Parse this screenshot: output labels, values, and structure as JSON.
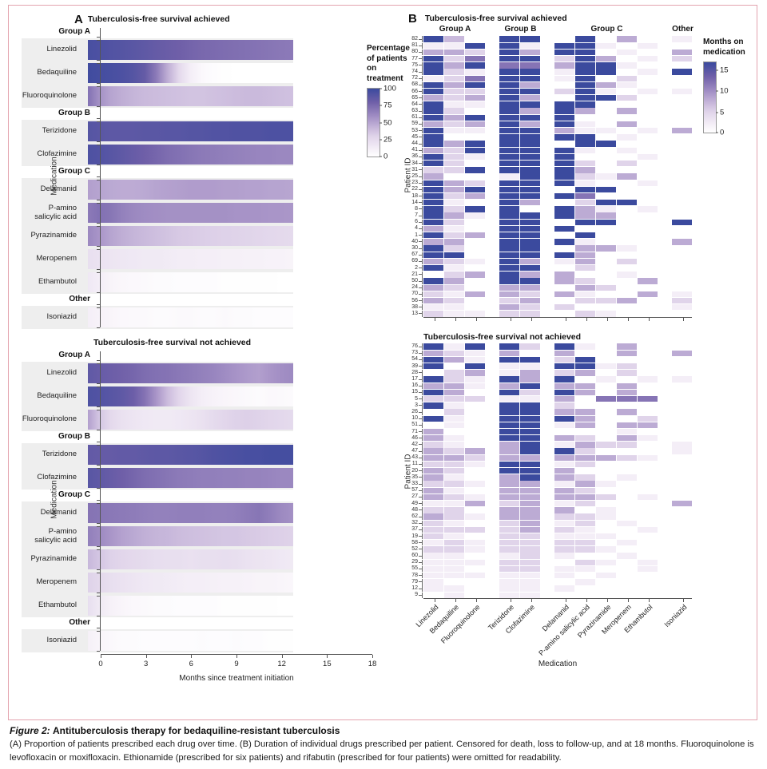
{
  "figure": {
    "caption_label": "Figure 2:",
    "caption_title": "Antituberculosis therapy for bedaquiline-resistant tuberculosis",
    "caption_body": "(A) Proportion of patients prescribed each drug over time. (B) Duration of individual drugs prescribed per patient. Censored for death, loss to follow-up, and at 18 months. Fluoroquinolone is levofloxacin or moxifloxacin. Ethionamide (prescribed for six patients) and rifabutin (prescribed for four patients) were omitted for readability."
  },
  "colors": {
    "frame_border": "#e4a4af",
    "scale_dark": "#3b4a9e",
    "scale_mid": "#a995c8",
    "scale_light": "#f6f1f8",
    "axis": "#555555"
  },
  "panel_a": {
    "panel_label": "A",
    "title_achieved": "Tuberculosis-free survival achieved",
    "title_not_achieved": "Tuberculosis-free survival not achieved",
    "ylabel": "Medication",
    "xlabel": "Months since treatment initiation",
    "x_ticks": [
      "0",
      "3",
      "6",
      "9",
      "12",
      "15",
      "18"
    ],
    "legend_title_lines": [
      "Percentage",
      "of patients",
      "on",
      "treatment"
    ],
    "legend_ticks": [
      "100",
      "75",
      "50",
      "25",
      "0"
    ]
  },
  "panel_b": {
    "panel_label": "B",
    "title_achieved": "Tuberculosis-free survival achieved",
    "title_not_achieved": "Tuberculosis-free survival not achieved",
    "ylabel": "Patient ID",
    "xlabel": "Medication",
    "group_labels": [
      "Group A",
      "Group B",
      "Group C",
      "Other"
    ],
    "legend_title_lines": [
      "Months on",
      "medication"
    ],
    "legend_ticks": [
      "15",
      "10",
      "5",
      "0"
    ]
  },
  "chart_data": [
    {
      "panel": "A",
      "type": "heatmap",
      "title_achieved": "Tuberculosis-free survival achieved",
      "title_not_achieved": "Tuberculosis-free survival not achieved",
      "value_unit": "percentage of patients on treatment",
      "scale": {
        "min": 0,
        "max": 100
      },
      "x_range_months": [
        0,
        18
      ],
      "x_ticks": [
        0,
        3,
        6,
        9,
        12,
        15,
        18
      ],
      "xlabel": "Months since treatment initiation",
      "ylabel": "Medication",
      "groups": [
        {
          "name": "Group A",
          "medications": [
            "Linezolid",
            "Bedaquiline",
            "Fluoroquinolone"
          ]
        },
        {
          "name": "Group B",
          "medications": [
            "Terizidone",
            "Clofazimine"
          ]
        },
        {
          "name": "Group C",
          "medications": [
            "Delamanid",
            "P-amino salicylic acid",
            "Pyrazinamide",
            "Meropenem",
            "Ethambutol"
          ]
        },
        {
          "name": "Other",
          "medications": [
            "Isoniazid"
          ]
        }
      ],
      "achieved": {
        "Linezolid": [
          95,
          93,
          91,
          90,
          88,
          86,
          84,
          82,
          80,
          78,
          76,
          75,
          74,
          73,
          72,
          71,
          70,
          69,
          68
        ],
        "Bedaquiline": [
          98,
          96,
          95,
          93,
          90,
          84,
          68,
          46,
          26,
          12,
          5,
          2,
          1,
          0,
          0,
          0,
          0,
          0,
          0
        ],
        "Fluoroquinolone": [
          72,
          58,
          50,
          46,
          43,
          41,
          40,
          39,
          38,
          37,
          37,
          38,
          39,
          40,
          41,
          41,
          40,
          39,
          38
        ],
        "Terizidone": [
          90,
          88,
          87,
          87,
          87,
          88,
          88,
          89,
          89,
          90,
          90,
          91,
          91,
          92,
          92,
          92,
          93,
          93,
          93
        ],
        "Clofazimine": [
          93,
          91,
          89,
          86,
          83,
          80,
          77,
          74,
          72,
          70,
          68,
          67,
          66,
          65,
          64,
          63,
          63,
          62,
          62
        ],
        "Delamanid": [
          52,
          50,
          48,
          47,
          47,
          48,
          50,
          51,
          52,
          53,
          53,
          53,
          52,
          52,
          51,
          51,
          50,
          50,
          49
        ],
        "P-amino salicylic acid": [
          68,
          72,
          70,
          65,
          62,
          60,
          59,
          58,
          58,
          58,
          58,
          58,
          58,
          57,
          57,
          57,
          56,
          56,
          55
        ],
        "Pyrazinamide": [
          62,
          56,
          50,
          46,
          43,
          41,
          39,
          37,
          35,
          34,
          33,
          32,
          31,
          30,
          29,
          28,
          27,
          26,
          25
        ],
        "Meropenem": [
          22,
          20,
          18,
          17,
          16,
          15,
          15,
          14,
          13,
          13,
          12,
          12,
          11,
          11,
          10,
          10,
          9,
          9,
          8
        ],
        "Ethambutol": [
          16,
          12,
          8,
          6,
          5,
          4,
          3,
          3,
          2,
          2,
          2,
          2,
          1,
          1,
          1,
          1,
          1,
          0,
          0
        ],
        "Isoniazid": [
          12,
          9,
          7,
          5,
          4,
          4,
          3,
          3,
          4,
          4,
          3,
          3,
          4,
          3,
          3,
          2,
          2,
          2,
          2
        ]
      },
      "not_achieved": {
        "Linezolid": [
          86,
          83,
          81,
          79,
          77,
          74,
          72,
          71,
          69,
          67,
          65,
          63,
          60,
          57,
          54,
          52,
          56,
          59,
          61
        ],
        "Bedaquiline": [
          93,
          91,
          89,
          86,
          81,
          71,
          56,
          40,
          28,
          18,
          12,
          9,
          7,
          6,
          4,
          3,
          5,
          4,
          3
        ],
        "Fluoroquinolone": [
          52,
          36,
          26,
          21,
          18,
          16,
          15,
          15,
          16,
          18,
          21,
          25,
          28,
          31,
          32,
          30,
          28,
          27,
          25
        ],
        "Terizidone": [
          85,
          84,
          84,
          85,
          85,
          86,
          87,
          87,
          88,
          89,
          90,
          92,
          93,
          94,
          95,
          95,
          96,
          96,
          96
        ],
        "Clofazimine": [
          89,
          86,
          83,
          80,
          77,
          74,
          72,
          70,
          68,
          67,
          66,
          66,
          65,
          65,
          64,
          64,
          63,
          62,
          62
        ],
        "Delamanid": [
          71,
          70,
          69,
          68,
          67,
          66,
          65,
          65,
          66,
          66,
          66,
          65,
          65,
          66,
          68,
          70,
          66,
          61,
          58
        ],
        "P-amino salicylic acid": [
          66,
          61,
          56,
          51,
          48,
          45,
          43,
          42,
          40,
          39,
          38,
          37,
          36,
          36,
          35,
          34,
          33,
          32,
          30
        ],
        "Pyrazinamide": [
          42,
          36,
          31,
          28,
          26,
          25,
          23,
          22,
          22,
          21,
          22,
          22,
          23,
          22,
          20,
          19,
          18,
          16,
          15
        ],
        "Meropenem": [
          31,
          26,
          22,
          20,
          18,
          16,
          15,
          14,
          13,
          12,
          12,
          11,
          10,
          10,
          9,
          8,
          8,
          7,
          6
        ],
        "Ethambutol": [
          23,
          15,
          10,
          7,
          5,
          4,
          3,
          3,
          2,
          2,
          2,
          2,
          1,
          1,
          1,
          1,
          1,
          0,
          0
        ],
        "Isoniazid": [
          11,
          7,
          5,
          3,
          3,
          2,
          2,
          2,
          2,
          2,
          3,
          2,
          2,
          3,
          2,
          2,
          1,
          1,
          1
        ]
      }
    },
    {
      "panel": "B",
      "type": "heatmap",
      "value_unit": "months on medication",
      "scale": {
        "min": 0,
        "max": 17
      },
      "cell_encoding": "one character per medication column; '.' = not prescribed (white); '1'-'9' = 1-9 months; 'A'-'H' = 10-17 months",
      "columns": [
        "Linezolid",
        "Bedaquiline",
        "Fluoroquinolone",
        "Terizidone",
        "Clofazimine",
        "Delamanid",
        "P-amino salicylic acid",
        "Pyrazinamide",
        "Meropenem",
        "Ethambutol",
        "Isoniazid"
      ],
      "column_groups": [
        {
          "label": "Group A",
          "span": 3
        },
        {
          "label": "Group B",
          "span": 2
        },
        {
          "label": "Group C",
          "span": 5
        },
        {
          "label": "Other",
          "span": 1
        }
      ],
      "xlabel": "Medication",
      "ylabel": "Patient ID",
      "achieved": {
        "patient_ids": [
          "82",
          "81",
          "80",
          "77",
          "75",
          "74",
          "72",
          "68",
          "66",
          "65",
          "64",
          "63",
          "61",
          "59",
          "53",
          "45",
          "44",
          "41",
          "36",
          "34",
          "31",
          "25",
          "23",
          "22",
          "18",
          "14",
          "8",
          "7",
          "6",
          "4",
          "1",
          "40",
          "30",
          "67",
          "69",
          "2",
          "21",
          "50",
          "24",
          "70",
          "56",
          "38",
          "13"
        ],
        "cells": [
          "H7.HH.H.8.2",
          "22HH2HH2.2.",
          "885H8HH.2.8",
          "H5CHH5H8.25",
          "H8HCC8HH2..",
          "H52HH2HH.2H",
          "25CHH2H.5..",
          "H8HH8.H82..",
          "H55HH5H2.22",
          "858H8.HH5..",
          "H22HHHH....",
          "H5.H8H8.8..",
          "H8HHHH.....",
          "858H8H2.8..",
          "H22HH822.28",
          "H..HHHH.2..",
          "H8HHH.HH...",
          "85HHHH2.2..",
          "H52HHH...2.",
          "H5.HHH5.5..",
          "55HHHH8....",
          "8..2HH528..",
          "H85HHH2..2.",
          "H8HHH.HH...",
          "H58HHHC....",
          "H2.H8.5HH..",
          "H5HH.H82.2.",
          "H82HHH88...",
          "H5.HH.HH..H",
          "82.HHH.....",
          "H58HH.H....",
          "88.HHH2...8",
          "H5.HH.882..",
          "HH.HHH8....",
          "852H828.5..",
          "H2.HH.5....",
          ".58H88..2..",
          "H8.HH85..8.",
          "85.88.85...",
          "5288582..82",
          "85.58.558.5",
          "22.855....2",
          "52255.52..."
        ]
      },
      "not_achieved": {
        "patient_ids": [
          "76",
          "73",
          "54",
          "39",
          "28",
          "17",
          "16",
          "15",
          "5",
          "3",
          "26",
          "10",
          "51",
          "71",
          "46",
          "42",
          "47",
          "43",
          "11",
          "20",
          "35",
          "33",
          "57",
          "27",
          "49",
          "48",
          "62",
          "32",
          "37",
          "19",
          "58",
          "52",
          "60",
          "29",
          "55",
          "78",
          "79",
          "12",
          "9"
        ],
        "cells": [
          "H2HH5H2.8..",
          "8528.8..8.8",
          "H82HH5H....",
          "H.H22HH25..",
          ".582858.5..",
          "H52H8H.2.22",
          "8828H88.8..",
          "H8.H5H8.8..",
          "555228.CCC.",
          "H2.HH5.....",
          ".5.HH88.8..",
          "H2.HHH8..5.",
          ".2.HH28.88.",
          "8..HH...2..",
          "82.HH85.82.",
          "52.8H2855.2",
          "8588HH5...2",
          "8858888852.",
          "552HH25....",
          "85.HH8.....",
          "82.8H85.2..",
          "55288282...",
          "82.8885....",
          "85288885.2.",
          "2285825...8",
          "55.888.2...",
          "85288552...",
          "52.5825.2..",
          "5555852..2.",
          "52.55222...",
          "2525555.2..",
          "55255552...",
          "22.252..2..",
          "22255.52.2.",
          "22.5522..2.",
          "222222.2...",
          "2..22.2....",
          "22.222.....",
          ".2.22......"
        ]
      }
    }
  ]
}
